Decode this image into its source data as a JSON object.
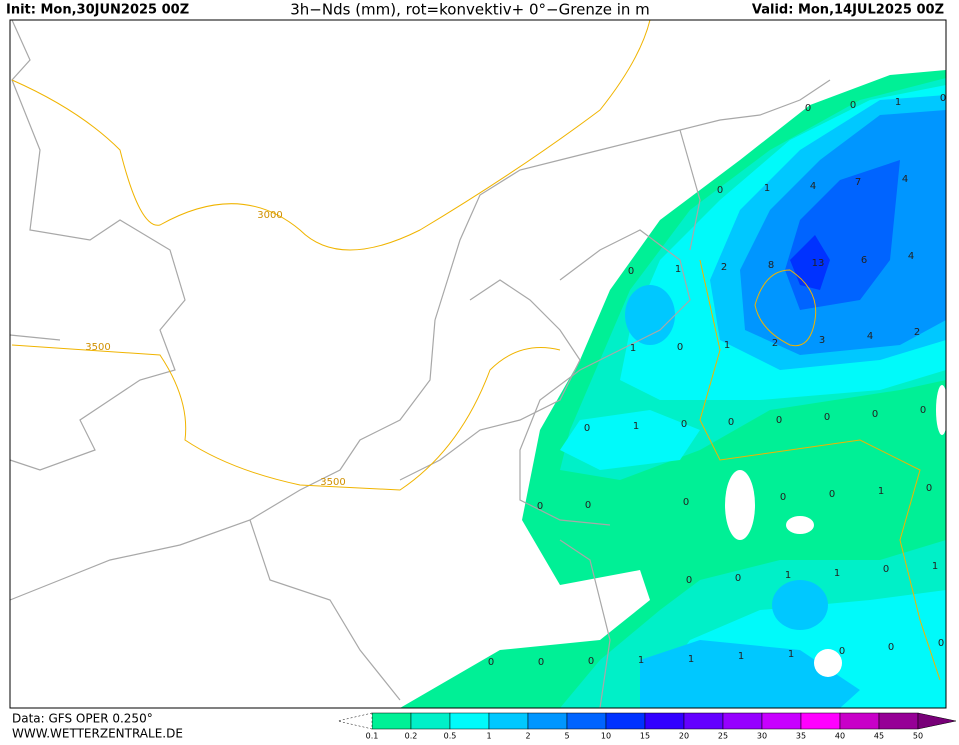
{
  "header": {
    "init": "Init: Mon,30JUN2025 00Z",
    "title": "3h−Nds (mm), rot=konvektiv+ 0°−Grenze in m",
    "valid": "Valid: Mon,14JUL2025 00Z"
  },
  "contour_labels": [
    "3000",
    "3500",
    "3500"
  ],
  "precip_labels": [
    [
      0,
      0,
      1,
      0
    ],
    [
      0,
      1,
      4,
      7,
      4
    ],
    [
      0,
      1,
      2,
      8,
      13,
      6,
      4
    ],
    [
      1,
      0,
      1,
      2,
      3,
      4,
      2
    ],
    [
      0,
      1,
      0,
      0,
      0,
      0,
      0,
      0
    ],
    [
      0,
      0,
      0,
      0,
      0,
      1,
      0
    ],
    [
      0,
      0,
      1,
      1,
      0,
      1
    ],
    [
      0,
      0,
      0,
      1,
      1,
      1,
      1,
      0,
      0,
      0
    ]
  ],
  "legend": {
    "labels": [
      0.1,
      0.2,
      0.5,
      1,
      2,
      5,
      10,
      15,
      20,
      25,
      30,
      35,
      40,
      45,
      50
    ],
    "colors": [
      "#00f096",
      "#00f0c8",
      "#00fafa",
      "#00c8ff",
      "#0096ff",
      "#0064ff",
      "#0032ff",
      "#3200ff",
      "#6400ff",
      "#9600ff",
      "#c800ff",
      "#ff00ff",
      "#c800c8",
      "#960096",
      "#780078"
    ]
  },
  "footer": {
    "source": "Data: GFS OPER 0.250°",
    "site": "WWW.WETTERZENTRALE.DE"
  }
}
